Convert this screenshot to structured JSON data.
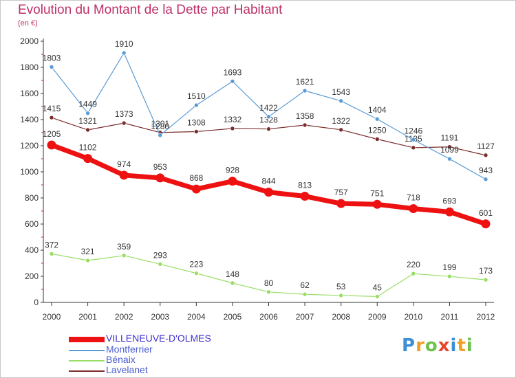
{
  "title": "Evolution du Montant de la Dette par Habitant",
  "subtitle": "(en €)",
  "logo": "Proxiti",
  "chart_data": {
    "type": "line",
    "title": "Evolution du Montant de la Dette par Habitant",
    "subtitle": "(en €)",
    "xlabel": "",
    "ylabel": "",
    "x": [
      "2000",
      "2001",
      "2002",
      "2003",
      "2004",
      "2005",
      "2006",
      "2007",
      "2008",
      "2009",
      "2010",
      "2011",
      "2012"
    ],
    "ylim": [
      0,
      2000
    ],
    "yticks": [
      0,
      200,
      400,
      600,
      800,
      1000,
      1200,
      1400,
      1600,
      1800,
      2000
    ],
    "grid": false,
    "legend_position": "bottom-left",
    "series": [
      {
        "name": "VILLENEUVE-D'OLMES",
        "color": "#ee1111",
        "label_color": "#ee1111",
        "values": [
          1205,
          1102,
          974,
          953,
          868,
          928,
          844,
          813,
          757,
          751,
          718,
          693,
          601
        ]
      },
      {
        "name": "Montferrier",
        "color": "#5b9bd5",
        "label_color": "#6c8cd5",
        "values": [
          1803,
          1449,
          1910,
          1280,
          1510,
          1693,
          1422,
          1621,
          1543,
          1404,
          1246,
          1099,
          943
        ]
      },
      {
        "name": "Bénaix",
        "color": "#99dd66",
        "label_color": "#88cc55",
        "values": [
          372,
          321,
          359,
          293,
          223,
          148,
          80,
          62,
          53,
          45,
          220,
          199,
          173
        ]
      },
      {
        "name": "Lavelanet",
        "color": "#7a2c2c",
        "label_color": "#8b3a3a",
        "values": [
          1415,
          1321,
          1373,
          1301,
          1308,
          1332,
          1328,
          1358,
          1322,
          1250,
          1185,
          1191,
          1127
        ]
      }
    ]
  }
}
